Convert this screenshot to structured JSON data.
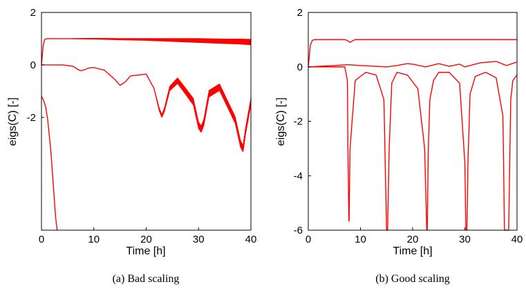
{
  "chart_data": [
    {
      "type": "line",
      "panel": "a",
      "caption": "(a) Bad scaling",
      "xlabel": "Time [h]",
      "ylabel": "eigs(C) [-]",
      "xlim": [
        0,
        40
      ],
      "ylim": [
        -6.3,
        2
      ],
      "xticks": [
        0,
        10,
        20,
        30,
        40
      ],
      "yticks": [
        -2,
        0,
        2
      ],
      "grid": false,
      "legend": "none",
      "color": "#ff0000",
      "series": [
        {
          "x": [
            0,
            0.3,
            0.6,
            1,
            2,
            5,
            10,
            15,
            20,
            25,
            30,
            35,
            38,
            40
          ],
          "y": [
            0,
            0.7,
            0.97,
            1.0,
            1.0,
            1.0,
            1.0,
            0.98,
            0.97,
            0.95,
            0.93,
            0.9,
            0.89,
            0.87
          ],
          "noise": [
            0,
            0,
            0,
            0,
            0,
            0,
            0.01,
            0.02,
            0.03,
            0.05,
            0.07,
            0.08,
            0.09,
            0.1
          ]
        },
        {
          "x": [
            0,
            4,
            6,
            7,
            7.5,
            8,
            9,
            10,
            12,
            14,
            15,
            16,
            17,
            20,
            21.5,
            22.5,
            23,
            23.5,
            24.5,
            26,
            29,
            30,
            30.5,
            31,
            32,
            34,
            37,
            38,
            38.5,
            39,
            40
          ],
          "y": [
            0,
            0,
            -0.05,
            -0.18,
            -0.22,
            -0.2,
            -0.12,
            -0.1,
            -0.2,
            -0.55,
            -0.78,
            -0.65,
            -0.42,
            -0.35,
            -0.9,
            -1.7,
            -1.95,
            -1.7,
            -0.9,
            -0.6,
            -1.4,
            -2.3,
            -2.45,
            -2.2,
            -1.1,
            -0.85,
            -2.1,
            -3.0,
            -3.2,
            -2.5,
            -1.4
          ],
          "noise": [
            0,
            0,
            0,
            0,
            0,
            0,
            0,
            0,
            0,
            0,
            0,
            0,
            0,
            0,
            0,
            0.05,
            0.05,
            0.06,
            0.08,
            0.1,
            0.12,
            0.12,
            0.12,
            0.12,
            0.12,
            0.12,
            0.12,
            0.12,
            0.12,
            0.12,
            0.12
          ]
        },
        {
          "x": [
            0,
            0.4,
            0.8,
            1.2,
            1.8,
            2.3,
            2.7,
            3.0
          ],
          "y": [
            -1.2,
            -1.35,
            -1.6,
            -2.1,
            -3.3,
            -4.7,
            -5.8,
            -6.3
          ],
          "noise": [
            0,
            0,
            0,
            0,
            0,
            0,
            0,
            0
          ]
        }
      ]
    },
    {
      "type": "line",
      "panel": "b",
      "caption": "(b) Good scaling",
      "xlabel": "Time [h]",
      "ylabel": "eigs(C) [-]",
      "xlim": [
        0,
        40
      ],
      "ylim": [
        -6,
        2
      ],
      "xticks": [
        0,
        10,
        20,
        30,
        40
      ],
      "yticks": [
        -6,
        -4,
        -2,
        0,
        2
      ],
      "grid": false,
      "legend": "none",
      "color": "#ff0000",
      "series": [
        {
          "x": [
            0,
            0.4,
            0.8,
            1.2,
            3,
            7,
            7.5,
            8,
            8.5,
            9,
            12,
            20,
            30,
            40
          ],
          "y": [
            0,
            0.8,
            0.98,
            1.0,
            1.0,
            1.0,
            0.97,
            0.9,
            0.96,
            1.0,
            1.0,
            1.0,
            1.0,
            1.0
          ],
          "noise": [
            0,
            0,
            0,
            0,
            0,
            0,
            0,
            0,
            0,
            0,
            0,
            0,
            0,
            0
          ]
        },
        {
          "x": [
            0,
            2,
            5,
            7.5,
            10,
            15,
            17,
            19,
            20,
            22.5,
            25,
            27,
            29,
            30,
            33,
            36,
            38,
            40
          ],
          "y": [
            0,
            0.02,
            0.05,
            0.08,
            0.05,
            0,
            0.05,
            0.12,
            0.1,
            0,
            0.12,
            0.02,
            0.1,
            0,
            0.15,
            0.2,
            0.05,
            0.18
          ],
          "noise": [
            0,
            0,
            0,
            0,
            0,
            0,
            0,
            0,
            0,
            0,
            0,
            0,
            0,
            0,
            0,
            0,
            0,
            0
          ]
        },
        {
          "x": [
            0,
            4,
            7,
            7.5,
            7.6,
            7.8,
            8,
            9,
            11,
            13,
            14.5,
            15,
            15.2,
            15.5,
            16,
            17,
            19,
            21,
            22.3,
            22.7,
            22.8,
            23,
            23.3,
            24,
            25,
            27,
            29,
            30,
            30.2,
            30.4,
            30.6,
            31,
            32,
            34,
            36,
            37.3,
            37.6,
            37.8,
            38.4,
            38.8,
            39.2,
            40
          ],
          "y": [
            0,
            0,
            0,
            -0.5,
            -3,
            -6,
            -3,
            -0.5,
            -0.2,
            -0.3,
            -1.2,
            -6,
            -6,
            -3,
            -0.6,
            -0.2,
            -0.3,
            -0.8,
            -3,
            -6,
            -6,
            -3,
            -1.2,
            -0.5,
            -0.2,
            -0.2,
            -0.6,
            -3.5,
            -6,
            -6,
            -3.5,
            -1.0,
            -0.35,
            -0.2,
            -0.4,
            -1.8,
            -6,
            -6,
            -6,
            -1.2,
            -0.5,
            -0.3
          ],
          "noise": [
            0,
            0,
            0,
            0,
            0,
            0,
            0,
            0,
            0,
            0,
            0,
            0,
            0,
            0,
            0,
            0,
            0,
            0,
            0,
            0,
            0,
            0,
            0,
            0,
            0,
            0,
            0,
            0,
            0,
            0,
            0,
            0,
            0,
            0,
            0,
            0,
            0,
            0,
            0,
            0,
            0,
            0
          ]
        }
      ]
    }
  ]
}
